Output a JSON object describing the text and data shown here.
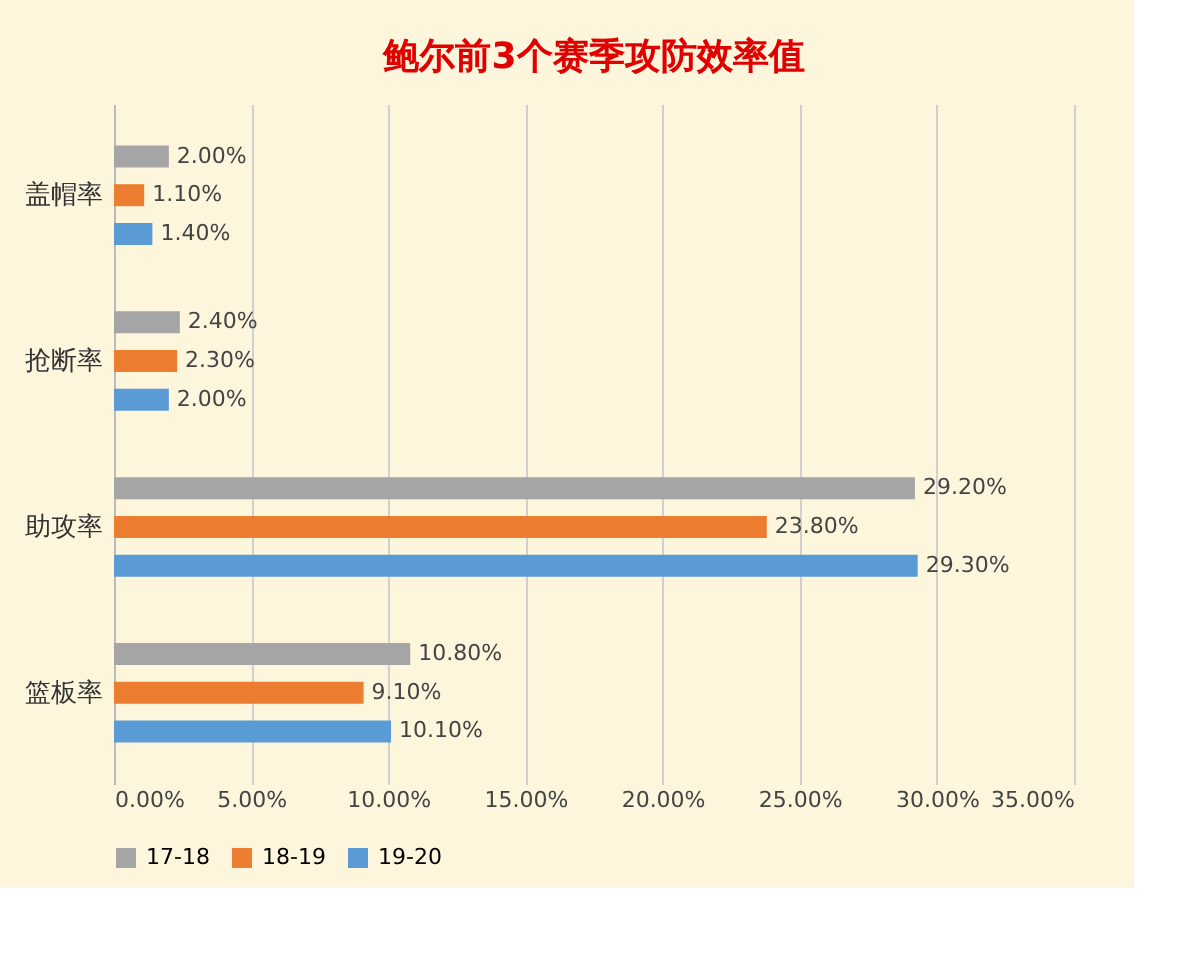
{
  "chart_data": {
    "type": "bar",
    "orientation": "horizontal",
    "title": "鲍尔前3个赛季攻防效率值",
    "categories": [
      "盖帽率",
      "抢断率",
      "助攻率",
      "篮板率"
    ],
    "series": [
      {
        "name": "17-18",
        "color": "#a5a5a5",
        "values": [
          2.0,
          2.4,
          29.2,
          10.8
        ],
        "value_labels": [
          "2.00%",
          "2.40%",
          "29.20%",
          "10.80%"
        ]
      },
      {
        "name": "18-19",
        "color": "#ed7d31",
        "values": [
          1.1,
          2.3,
          23.8,
          9.1
        ],
        "value_labels": [
          "1.10%",
          "2.30%",
          "23.80%",
          "9.10%"
        ]
      },
      {
        "name": "19-20",
        "color": "#5b9bd5",
        "values": [
          1.4,
          2.0,
          29.3,
          10.1
        ],
        "value_labels": [
          "1.40%",
          "2.00%",
          "29.30%",
          "10.10%"
        ]
      }
    ],
    "xlim": [
      0,
      35
    ],
    "xticks": [
      {
        "value": 0,
        "label": "0.00%"
      },
      {
        "value": 5,
        "label": "5.00%"
      },
      {
        "value": 10,
        "label": "10.00%"
      },
      {
        "value": 15,
        "label": "15.00%"
      },
      {
        "value": 20,
        "label": "20.00%"
      },
      {
        "value": 25,
        "label": "25.00%"
      },
      {
        "value": 30,
        "label": "30.00%"
      },
      {
        "value": 35,
        "label": "35.00%"
      }
    ],
    "grid": "x",
    "legend": "bottom"
  }
}
